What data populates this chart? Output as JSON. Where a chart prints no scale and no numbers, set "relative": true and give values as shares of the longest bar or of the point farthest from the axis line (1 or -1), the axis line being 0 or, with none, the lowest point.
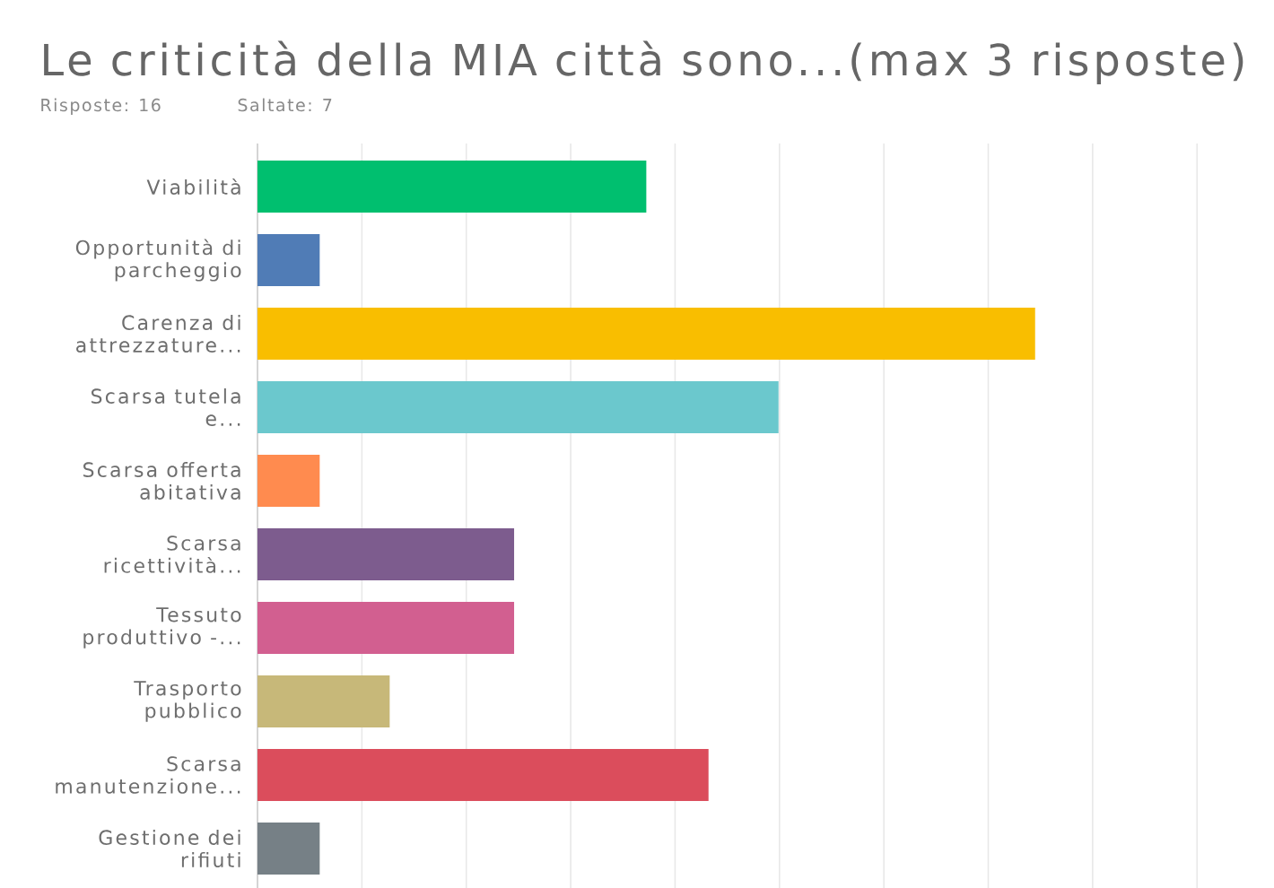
{
  "chart_data": {
    "type": "bar",
    "orientation": "horizontal",
    "relative": true,
    "title": "Le criticità della MIA città sono...(max 3 risposte)",
    "annotations": [
      "Risposte: 16",
      "Saltate: 7"
    ],
    "categories": [
      "Viabilità",
      "Opportunità di parcheggio",
      "Carenza di attrezzature...",
      "Scarsa tutela e...",
      "Scarsa offerta abitativa",
      "Scarsa ricettività...",
      "Tessuto produttivo -...",
      "Trasporto pubblico",
      "Scarsa manutenzione...",
      "Gestione dei rifiuti"
    ],
    "values": [
      0.5,
      0.08,
      1,
      0.67,
      0.08,
      0.33,
      0.33,
      0.17,
      0.58,
      0.08
    ],
    "colors": [
      "#00bf6f",
      "#507cb6",
      "#f9be00",
      "#6bc8cd",
      "#ff8b4f",
      "#7d5c8e",
      "#d25f90",
      "#c7b879",
      "#db4d5c",
      "#768086"
    ],
    "grid": "x",
    "tick_labels": "y"
  }
}
